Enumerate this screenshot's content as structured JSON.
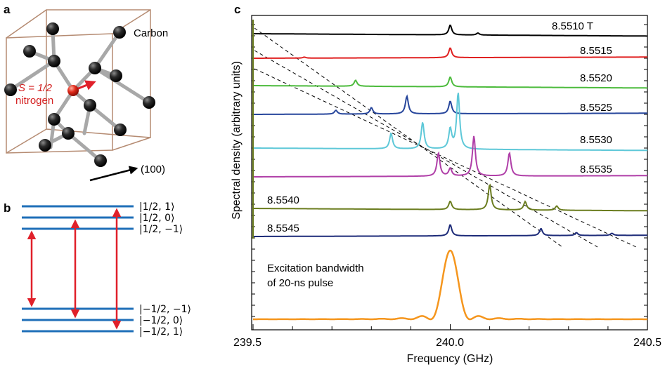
{
  "panels": {
    "a": {
      "letter": "a",
      "carbon_label": "Carbon",
      "spin_label": "S = 1/2",
      "nitrogen_label": "nitrogen",
      "direction_label": "(100)"
    },
    "b": {
      "letter": "b",
      "levels": [
        "|1/2, 1⟩",
        "|1/2, 0⟩",
        "|1/2, −1⟩",
        "|−1/2, −1⟩",
        "|−1/2, 0⟩",
        "|−1/2, 1⟩"
      ]
    },
    "c": {
      "letter": "c",
      "ylabel": "Spectral density (arbitrary units)",
      "xlabel": "Frequency (GHz)",
      "xticks": [
        "239.5",
        "240.0",
        "240.5"
      ],
      "field_labels": [
        "8.5510 T",
        "8.5515",
        "8.5520",
        "8.5525",
        "8.5530",
        "8.5535",
        "8.5540",
        "8.5545"
      ],
      "excitation_label_line1": "Excitation bandwidth",
      "excitation_label_line2": "of 20-ns pulse"
    }
  },
  "chart_data": {
    "type": "line",
    "xlabel": "Frequency (GHz)",
    "ylabel": "Spectral density (arbitrary units)",
    "xlim": [
      239.5,
      240.5
    ],
    "series": [
      {
        "name": "8.5510 T",
        "color": "#000000",
        "peaks": [
          [
            240.0,
            1.0
          ],
          [
            240.07,
            0.2
          ]
        ]
      },
      {
        "name": "8.5515",
        "color": "#e02020",
        "peaks": [
          [
            239.63,
            0.1
          ],
          [
            240.0,
            1.0
          ]
        ]
      },
      {
        "name": "8.5520",
        "color": "#4cbb3c",
        "peaks": [
          [
            239.76,
            0.6
          ],
          [
            240.0,
            1.0
          ]
        ]
      },
      {
        "name": "8.5525",
        "color": "#27469c",
        "peaks": [
          [
            239.71,
            0.3
          ],
          [
            239.8,
            0.5
          ],
          [
            239.89,
            1.4
          ],
          [
            240.0,
            1.0
          ]
        ]
      },
      {
        "name": "8.5530",
        "color": "#5ec8d8",
        "peaks": [
          [
            239.85,
            1.1
          ],
          [
            239.93,
            1.9
          ],
          [
            240.0,
            1.4
          ],
          [
            240.02,
            4.0
          ]
        ]
      },
      {
        "name": "8.5535",
        "color": "#b03fa8",
        "peaks": [
          [
            239.97,
            1.5
          ],
          [
            240.0,
            0.5
          ],
          [
            240.06,
            2.6
          ],
          [
            240.15,
            1.5
          ]
        ]
      },
      {
        "name": "8.5540",
        "color": "#6b7d1f",
        "peaks": [
          [
            240.0,
            0.6
          ],
          [
            240.1,
            1.8
          ],
          [
            240.19,
            0.6
          ],
          [
            240.27,
            0.3
          ]
        ]
      },
      {
        "name": "8.5545",
        "color": "#1c2a78",
        "peaks": [
          [
            240.0,
            0.8
          ],
          [
            240.23,
            0.5
          ],
          [
            240.32,
            0.2
          ],
          [
            240.41,
            0.15
          ]
        ]
      }
    ],
    "excitation": {
      "name": "Excitation bandwidth of 20-ns pulse",
      "color": "#f5961e",
      "center": 240.0
    }
  }
}
